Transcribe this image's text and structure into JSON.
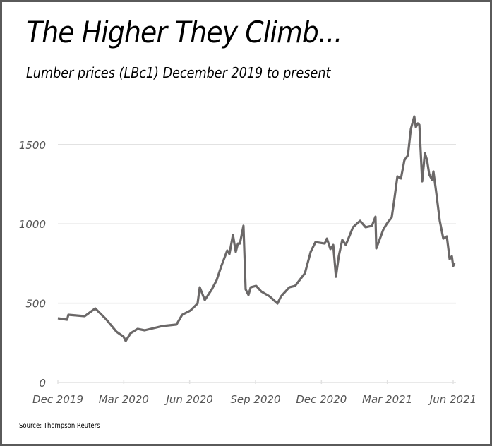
{
  "chart_data": {
    "type": "line",
    "title": "The Higher They Climb...",
    "subtitle": "Lumber prices (LBc1) December 2019 to present",
    "source": "Source: Thompson Reuters",
    "xlabel": "",
    "ylabel": "",
    "x_unit": "months since Dec 2019",
    "xlim": [
      0,
      18
    ],
    "ylim": [
      0,
      1500
    ],
    "grid": true,
    "line_color": "#6b6868",
    "grid_color": "#e2e2e2",
    "x_ticks": [
      {
        "pos": 0,
        "label": "Dec 2019"
      },
      {
        "pos": 3,
        "label": "Mar 2020"
      },
      {
        "pos": 6,
        "label": "Jun 2020"
      },
      {
        "pos": 9,
        "label": "Sep 2020"
      },
      {
        "pos": 12,
        "label": "Dec 2020"
      },
      {
        "pos": 15,
        "label": "Mar 2021"
      },
      {
        "pos": 18,
        "label": "Jun 2021"
      }
    ],
    "y_ticks": [
      {
        "pos": 0,
        "label": "0"
      },
      {
        "pos": 500,
        "label": "500"
      },
      {
        "pos": 1000,
        "label": "1000"
      },
      {
        "pos": 1500,
        "label": "1500"
      }
    ],
    "series": [
      {
        "name": "LBc1",
        "x": [
          0,
          0.42,
          0.48,
          1.22,
          1.7,
          2.19,
          2.67,
          2.99,
          3.09,
          3.31,
          3.63,
          3.95,
          4.76,
          5.4,
          5.66,
          6.04,
          6.36,
          6.46,
          6.69,
          7.01,
          7.23,
          7.43,
          7.71,
          7.81,
          7.97,
          8.1,
          8.2,
          8.29,
          8.45,
          8.55,
          8.68,
          8.78,
          9.03,
          9.26,
          9.64,
          10.0,
          10.16,
          10.54,
          10.8,
          11.25,
          11.51,
          11.73,
          12.15,
          12.25,
          12.41,
          12.54,
          12.66,
          12.79,
          12.95,
          13.11,
          13.44,
          13.76,
          14.01,
          14.3,
          14.46,
          14.5,
          14.82,
          14.98,
          15.2,
          15.3,
          15.46,
          15.62,
          15.78,
          15.94,
          16.07,
          16.23,
          16.3,
          16.39,
          16.46,
          16.59,
          16.71,
          16.81,
          16.91,
          17.04,
          17.1,
          17.23,
          17.39,
          17.55,
          17.71,
          17.84,
          17.94,
          18.0,
          18.06
        ],
        "values": [
          405,
          396,
          427,
          418,
          467,
          400,
          320,
          289,
          262,
          311,
          338,
          329,
          356,
          365,
          427,
          454,
          498,
          600,
          520,
          587,
          645,
          729,
          832,
          810,
          930,
          823,
          876,
          876,
          988,
          587,
          552,
          600,
          609,
          574,
          543,
          498,
          543,
          600,
          609,
          689,
          823,
          885,
          876,
          907,
          841,
          867,
          667,
          796,
          899,
          867,
          979,
          1019,
          979,
          988,
          1045,
          845,
          965,
          1001,
          1041,
          1134,
          1299,
          1286,
          1401,
          1432,
          1597,
          1677,
          1610,
          1633,
          1624,
          1268,
          1446,
          1401,
          1312,
          1277,
          1330,
          1197,
          1019,
          907,
          921,
          778,
          796,
          734,
          752
        ]
      }
    ]
  }
}
